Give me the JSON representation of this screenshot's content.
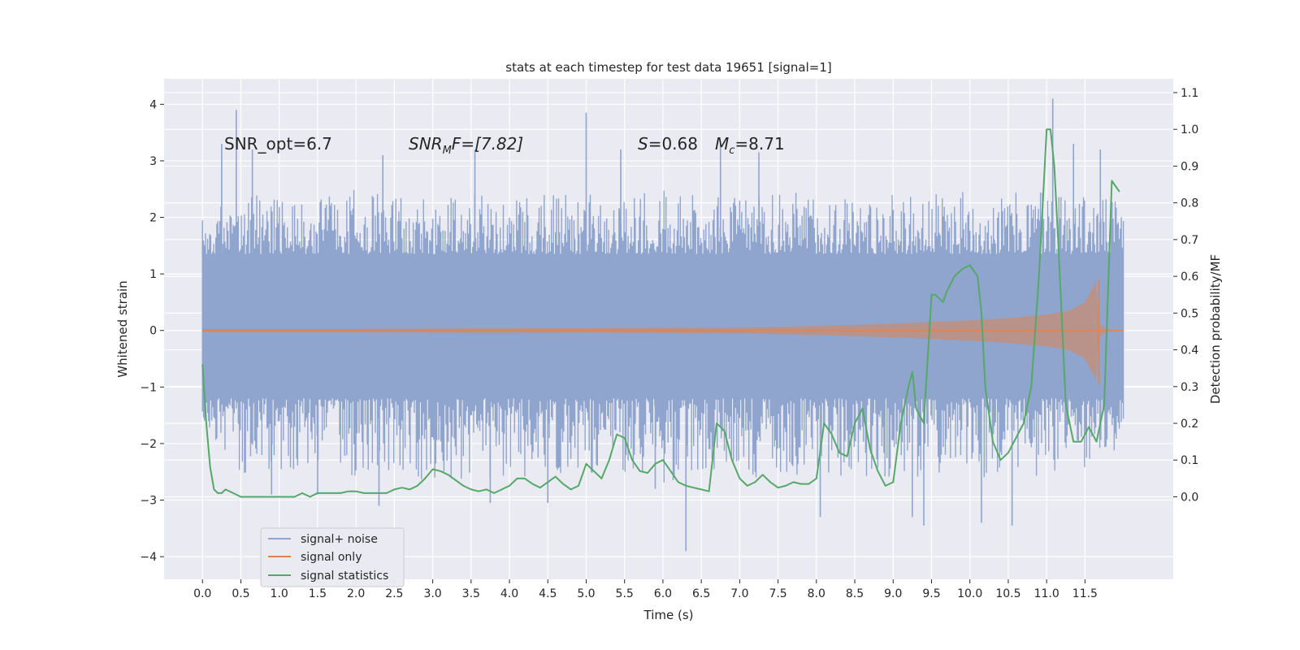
{
  "chart_data": {
    "type": "line",
    "title": "stats at each timestep for test data 19651 [signal=1]",
    "xlabel": "Time (s)",
    "ylabel_left": "Whitened strain",
    "ylabel_right": "Detection probability/MF",
    "xlim": [
      -0.5,
      12.65
    ],
    "ylim_left": [
      -4.4,
      4.45
    ],
    "ylim_right": [
      -0.2245,
      1.1375
    ],
    "x_ticks": [
      "0.0",
      "0.5",
      "1.0",
      "1.5",
      "2.0",
      "2.5",
      "3.0",
      "3.5",
      "4.0",
      "4.5",
      "5.0",
      "5.5",
      "6.0",
      "6.5",
      "7.0",
      "7.5",
      "8.0",
      "8.5",
      "9.0",
      "9.5",
      "10.0",
      "10.5",
      "11.0",
      "11.5"
    ],
    "y_ticks_left": [
      "−4",
      "−3",
      "−2",
      "−1",
      "0",
      "1",
      "2",
      "3",
      "4"
    ],
    "y_ticks_right": [
      "0.0",
      "0.1",
      "0.2",
      "0.3",
      "0.4",
      "0.5",
      "0.6",
      "0.7",
      "0.8",
      "0.9",
      "1.0",
      "1.1"
    ],
    "annotations": {
      "snr_opt": "SNR_opt=6.7",
      "snr_mf_name": "SNR",
      "snr_mf_sub": "M",
      "snr_mf_rest": "F=[7.82]",
      "s_name": "S",
      "s_rest": "=0.68",
      "mc_name": "M",
      "mc_sub": "c",
      "mc_rest": "=8.71"
    },
    "legend": {
      "placement": "lower-left",
      "entries": [
        "signal+ noise",
        "signal only",
        "signal statistics"
      ]
    },
    "series": [
      {
        "name": "signal+ noise",
        "color": "#8fa5cd",
        "axis": "left",
        "x_range": [
          0,
          12.0
        ],
        "envelope": [
          [
            0.0,
            2.0,
            -1.6
          ],
          [
            0.5,
            2.4,
            -2.6
          ],
          [
            1.0,
            2.4,
            -2.5
          ],
          [
            1.5,
            2.3,
            -2.4
          ],
          [
            2.0,
            2.6,
            -2.6
          ],
          [
            2.5,
            2.4,
            -2.6
          ],
          [
            3.0,
            2.3,
            -2.7
          ],
          [
            3.5,
            2.5,
            -2.6
          ],
          [
            4.0,
            2.3,
            -2.6
          ],
          [
            4.5,
            2.5,
            -2.6
          ],
          [
            5.0,
            2.4,
            -2.5
          ],
          [
            5.5,
            2.4,
            -2.6
          ],
          [
            6.0,
            2.5,
            -2.7
          ],
          [
            6.5,
            2.4,
            -2.6
          ],
          [
            7.0,
            2.4,
            -2.6
          ],
          [
            7.5,
            2.4,
            -2.6
          ],
          [
            8.0,
            2.5,
            -2.6
          ],
          [
            8.5,
            2.4,
            -2.6
          ],
          [
            9.0,
            2.4,
            -2.6
          ],
          [
            9.5,
            2.4,
            -2.7
          ],
          [
            10.0,
            2.5,
            -2.6
          ],
          [
            10.5,
            2.4,
            -2.6
          ],
          [
            11.0,
            2.6,
            -2.7
          ],
          [
            11.5,
            2.4,
            -2.5
          ],
          [
            12.0,
            2.3,
            -2.0
          ]
        ],
        "core_band": [
          -1.2,
          1.35
        ],
        "spikes": [
          [
            0.44,
            3.9
          ],
          [
            0.25,
            3.3
          ],
          [
            0.65,
            3.2
          ],
          [
            2.35,
            3.1
          ],
          [
            3.55,
            3.2
          ],
          [
            5.0,
            3.85
          ],
          [
            5.45,
            3.2
          ],
          [
            6.75,
            3.3
          ],
          [
            7.25,
            3.15
          ],
          [
            11.08,
            4.1
          ],
          [
            11.35,
            3.3
          ],
          [
            11.7,
            3.2
          ],
          [
            6.3,
            -3.9
          ],
          [
            8.05,
            -3.3
          ],
          [
            9.4,
            -3.45
          ],
          [
            9.25,
            -3.3
          ],
          [
            10.15,
            -3.4
          ],
          [
            10.55,
            -3.45
          ],
          [
            2.3,
            -3.1
          ],
          [
            3.75,
            -3.05
          ],
          [
            4.5,
            -3.05
          ],
          [
            1.5,
            -2.9
          ],
          [
            0.9,
            -2.9
          ],
          [
            5.9,
            -2.8
          ]
        ]
      },
      {
        "name": "signal only",
        "color": "#dd8452",
        "axis": "left",
        "amplitude": [
          [
            0.0,
            0.03
          ],
          [
            2.0,
            0.03
          ],
          [
            5.0,
            0.04
          ],
          [
            7.0,
            0.05
          ],
          [
            8.0,
            0.08
          ],
          [
            9.0,
            0.12
          ],
          [
            9.5,
            0.15
          ],
          [
            10.0,
            0.18
          ],
          [
            10.5,
            0.22
          ],
          [
            11.0,
            0.28
          ],
          [
            11.3,
            0.35
          ],
          [
            11.5,
            0.5
          ],
          [
            11.6,
            0.75
          ],
          [
            11.65,
            0.9
          ],
          [
            11.68,
            -0.95
          ],
          [
            11.7,
            0.1
          ],
          [
            11.8,
            0.02
          ],
          [
            12.0,
            0.0
          ]
        ]
      },
      {
        "name": "signal statistics",
        "color": "#55a868",
        "axis": "right",
        "x": [
          0.0,
          0.05,
          0.1,
          0.15,
          0.2,
          0.25,
          0.3,
          0.4,
          0.5,
          0.6,
          0.7,
          0.8,
          0.9,
          1.0,
          1.1,
          1.2,
          1.3,
          1.4,
          1.5,
          1.6,
          1.7,
          1.8,
          1.9,
          2.0,
          2.1,
          2.2,
          2.3,
          2.4,
          2.5,
          2.6,
          2.7,
          2.8,
          2.9,
          3.0,
          3.1,
          3.2,
          3.3,
          3.4,
          3.5,
          3.6,
          3.7,
          3.8,
          3.9,
          4.0,
          4.1,
          4.2,
          4.3,
          4.4,
          4.5,
          4.6,
          4.7,
          4.8,
          4.9,
          5.0,
          5.1,
          5.2,
          5.3,
          5.4,
          5.5,
          5.6,
          5.7,
          5.8,
          5.9,
          6.0,
          6.1,
          6.2,
          6.3,
          6.4,
          6.5,
          6.6,
          6.7,
          6.8,
          6.9,
          7.0,
          7.1,
          7.2,
          7.3,
          7.4,
          7.5,
          7.6,
          7.7,
          7.8,
          7.9,
          8.0,
          8.1,
          8.2,
          8.3,
          8.4,
          8.5,
          8.6,
          8.7,
          8.8,
          8.9,
          9.0,
          9.1,
          9.2,
          9.25,
          9.3,
          9.4,
          9.5,
          9.55,
          9.65,
          9.7,
          9.8,
          9.9,
          10.0,
          10.1,
          10.15,
          10.2,
          10.3,
          10.4,
          10.5,
          10.6,
          10.7,
          10.8,
          10.9,
          11.0,
          11.05,
          11.1,
          11.15,
          11.25,
          11.35,
          11.45,
          11.55,
          11.65,
          11.75,
          11.85,
          11.95
        ],
        "values": [
          0.36,
          0.2,
          0.08,
          0.02,
          0.01,
          0.01,
          0.02,
          0.01,
          0.0,
          0.0,
          0.0,
          0.0,
          0.0,
          0.0,
          0.0,
          0.0,
          0.01,
          0.0,
          0.01,
          0.01,
          0.01,
          0.01,
          0.015,
          0.015,
          0.01,
          0.01,
          0.01,
          0.01,
          0.02,
          0.025,
          0.02,
          0.03,
          0.05,
          0.075,
          0.07,
          0.06,
          0.045,
          0.03,
          0.02,
          0.015,
          0.02,
          0.01,
          0.02,
          0.03,
          0.05,
          0.05,
          0.035,
          0.025,
          0.04,
          0.055,
          0.035,
          0.02,
          0.03,
          0.09,
          0.07,
          0.05,
          0.1,
          0.17,
          0.16,
          0.1,
          0.07,
          0.065,
          0.09,
          0.1,
          0.07,
          0.04,
          0.03,
          0.025,
          0.02,
          0.015,
          0.2,
          0.18,
          0.1,
          0.05,
          0.03,
          0.04,
          0.06,
          0.04,
          0.025,
          0.03,
          0.04,
          0.035,
          0.035,
          0.05,
          0.2,
          0.17,
          0.12,
          0.11,
          0.2,
          0.24,
          0.13,
          0.07,
          0.03,
          0.04,
          0.2,
          0.3,
          0.34,
          0.24,
          0.2,
          0.55,
          0.55,
          0.53,
          0.56,
          0.6,
          0.62,
          0.63,
          0.6,
          0.5,
          0.3,
          0.15,
          0.1,
          0.12,
          0.16,
          0.2,
          0.3,
          0.6,
          1.0,
          1.0,
          0.9,
          0.7,
          0.25,
          0.15,
          0.15,
          0.19,
          0.15,
          0.25,
          0.86,
          0.83
        ]
      }
    ]
  }
}
